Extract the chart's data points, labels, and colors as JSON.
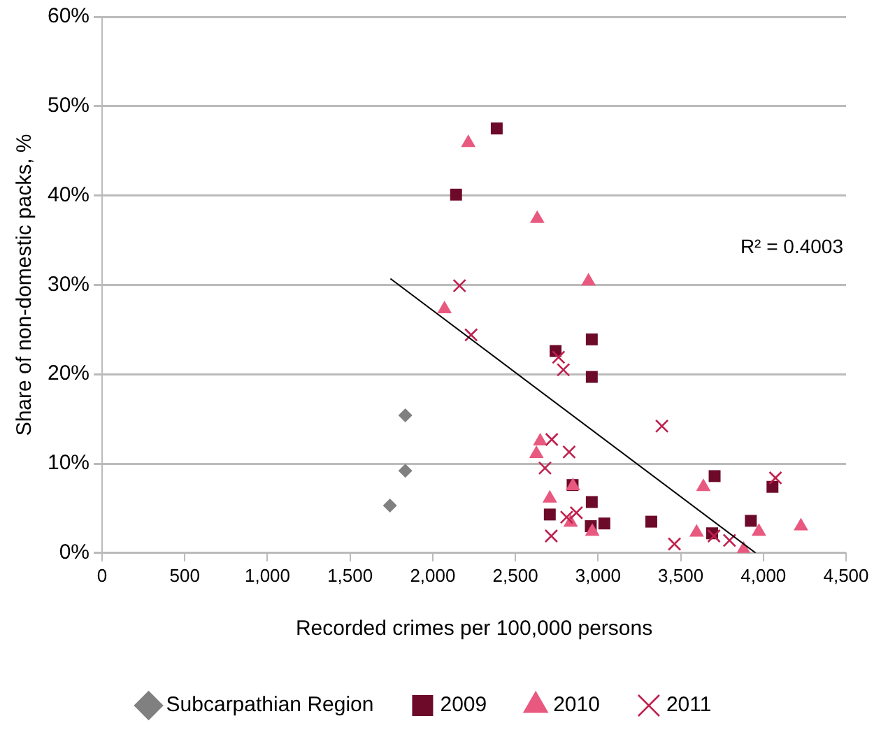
{
  "chart_data": {
    "type": "scatter",
    "xlabel": "Recorded crimes per 100,000 persons",
    "ylabel": "Share of non-domestic packs, %",
    "annotations": [
      "R² = 0.4003"
    ],
    "xlim": [
      0,
      4500
    ],
    "xticks": [
      0,
      500,
      {
        "value": 1000,
        "label": "1,000"
      },
      {
        "value": 1500,
        "label": "1,500"
      },
      {
        "value": 2000,
        "label": "2,000"
      },
      {
        "value": 2500,
        "label": "2,500"
      },
      {
        "value": 3000,
        "label": "3,000"
      },
      {
        "value": 3500,
        "label": "3,500"
      },
      {
        "value": 4000,
        "label": "4,000"
      },
      {
        "value": 4500,
        "label": "4,500"
      }
    ],
    "ylim": [
      0,
      60
    ],
    "yticks": [
      {
        "value": 0,
        "label": "0%"
      },
      {
        "value": 10,
        "label": "10%"
      },
      {
        "value": 20,
        "label": "20%"
      },
      {
        "value": 30,
        "label": "30%"
      },
      {
        "value": 40,
        "label": "40%"
      },
      {
        "value": 50,
        "label": "50%"
      },
      {
        "value": 60,
        "label": "60%"
      }
    ],
    "grid": "y",
    "legend": "bottom",
    "series": [
      {
        "name": "Subcarpathian Region",
        "color": "#808080",
        "marker": "diamond",
        "x": [
          1834,
          1834,
          1741
        ],
        "values": [
          15.4,
          9.2,
          5.3
        ]
      },
      {
        "name": "2009",
        "color": "#6d0a2a",
        "marker": "square",
        "x": [
          2387,
          2141,
          2743,
          2962,
          2962,
          3705,
          4055,
          2846,
          2962,
          2708,
          2956,
          3038,
          3322,
          3924,
          3690
        ],
        "values": [
          47.5,
          40.1,
          22.6,
          23.9,
          19.7,
          8.6,
          7.4,
          7.6,
          5.7,
          4.3,
          3.0,
          3.3,
          3.5,
          3.6,
          2.2
        ]
      },
      {
        "name": "2010",
        "color": "#e8587f",
        "marker": "triangle",
        "x": [
          2215,
          2632,
          2942,
          2071,
          2650,
          2627,
          2848,
          3637,
          2708,
          2834,
          2965,
          3596,
          3973,
          4227,
          3880
        ],
        "values": [
          45.9,
          37.4,
          30.4,
          27.3,
          12.5,
          11.1,
          7.5,
          7.4,
          6.1,
          3.4,
          2.4,
          2.3,
          2.4,
          3.0,
          0.4
        ]
      },
      {
        "name": "2011",
        "color": "#c0204e",
        "marker": "cross",
        "x": [
          2162,
          2232,
          2761,
          2790,
          3386,
          2720,
          2825,
          2679,
          4073,
          2810,
          2869,
          2717,
          3462,
          3701,
          3795
        ],
        "values": [
          29.9,
          24.4,
          21.9,
          20.5,
          14.2,
          12.7,
          11.3,
          9.5,
          8.4,
          4.0,
          4.5,
          1.9,
          1.0,
          1.9,
          1.4
        ]
      },
      {
        "type": "line",
        "color": "#000000",
        "marker": "none",
        "x": [
          1744,
          3953
        ],
        "values": [
          30.7,
          0
        ]
      }
    ]
  }
}
